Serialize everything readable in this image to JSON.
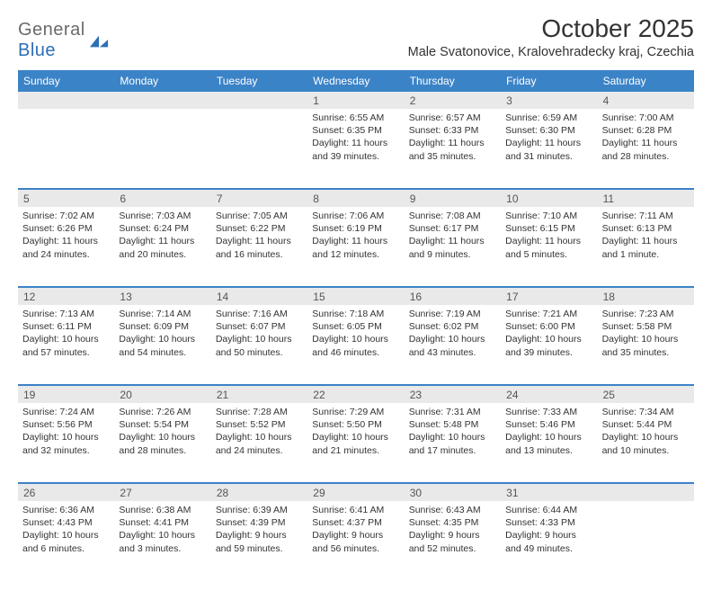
{
  "brand": {
    "text_gray": "General",
    "text_blue": "Blue",
    "shape_color": "#2d6fb5"
  },
  "title": "October 2025",
  "location": "Male Svatonovice, Kralovehradecky kraj, Czechia",
  "header_bg": "#3b83c7",
  "header_fg": "#ffffff",
  "daynum_bg": "#e9e9e9",
  "rule_color": "#3b83c7",
  "text_color": "#333333",
  "day_names": [
    "Sunday",
    "Monday",
    "Tuesday",
    "Wednesday",
    "Thursday",
    "Friday",
    "Saturday"
  ],
  "weeks": [
    {
      "nums": [
        "",
        "",
        "",
        "1",
        "2",
        "3",
        "4"
      ],
      "cells": [
        null,
        null,
        null,
        {
          "sunrise": "6:55 AM",
          "sunset": "6:35 PM",
          "daylight": "11 hours and 39 minutes."
        },
        {
          "sunrise": "6:57 AM",
          "sunset": "6:33 PM",
          "daylight": "11 hours and 35 minutes."
        },
        {
          "sunrise": "6:59 AM",
          "sunset": "6:30 PM",
          "daylight": "11 hours and 31 minutes."
        },
        {
          "sunrise": "7:00 AM",
          "sunset": "6:28 PM",
          "daylight": "11 hours and 28 minutes."
        }
      ]
    },
    {
      "nums": [
        "5",
        "6",
        "7",
        "8",
        "9",
        "10",
        "11"
      ],
      "cells": [
        {
          "sunrise": "7:02 AM",
          "sunset": "6:26 PM",
          "daylight": "11 hours and 24 minutes."
        },
        {
          "sunrise": "7:03 AM",
          "sunset": "6:24 PM",
          "daylight": "11 hours and 20 minutes."
        },
        {
          "sunrise": "7:05 AM",
          "sunset": "6:22 PM",
          "daylight": "11 hours and 16 minutes."
        },
        {
          "sunrise": "7:06 AM",
          "sunset": "6:19 PM",
          "daylight": "11 hours and 12 minutes."
        },
        {
          "sunrise": "7:08 AM",
          "sunset": "6:17 PM",
          "daylight": "11 hours and 9 minutes."
        },
        {
          "sunrise": "7:10 AM",
          "sunset": "6:15 PM",
          "daylight": "11 hours and 5 minutes."
        },
        {
          "sunrise": "7:11 AM",
          "sunset": "6:13 PM",
          "daylight": "11 hours and 1 minute."
        }
      ]
    },
    {
      "nums": [
        "12",
        "13",
        "14",
        "15",
        "16",
        "17",
        "18"
      ],
      "cells": [
        {
          "sunrise": "7:13 AM",
          "sunset": "6:11 PM",
          "daylight": "10 hours and 57 minutes."
        },
        {
          "sunrise": "7:14 AM",
          "sunset": "6:09 PM",
          "daylight": "10 hours and 54 minutes."
        },
        {
          "sunrise": "7:16 AM",
          "sunset": "6:07 PM",
          "daylight": "10 hours and 50 minutes."
        },
        {
          "sunrise": "7:18 AM",
          "sunset": "6:05 PM",
          "daylight": "10 hours and 46 minutes."
        },
        {
          "sunrise": "7:19 AM",
          "sunset": "6:02 PM",
          "daylight": "10 hours and 43 minutes."
        },
        {
          "sunrise": "7:21 AM",
          "sunset": "6:00 PM",
          "daylight": "10 hours and 39 minutes."
        },
        {
          "sunrise": "7:23 AM",
          "sunset": "5:58 PM",
          "daylight": "10 hours and 35 minutes."
        }
      ]
    },
    {
      "nums": [
        "19",
        "20",
        "21",
        "22",
        "23",
        "24",
        "25"
      ],
      "cells": [
        {
          "sunrise": "7:24 AM",
          "sunset": "5:56 PM",
          "daylight": "10 hours and 32 minutes."
        },
        {
          "sunrise": "7:26 AM",
          "sunset": "5:54 PM",
          "daylight": "10 hours and 28 minutes."
        },
        {
          "sunrise": "7:28 AM",
          "sunset": "5:52 PM",
          "daylight": "10 hours and 24 minutes."
        },
        {
          "sunrise": "7:29 AM",
          "sunset": "5:50 PM",
          "daylight": "10 hours and 21 minutes."
        },
        {
          "sunrise": "7:31 AM",
          "sunset": "5:48 PM",
          "daylight": "10 hours and 17 minutes."
        },
        {
          "sunrise": "7:33 AM",
          "sunset": "5:46 PM",
          "daylight": "10 hours and 13 minutes."
        },
        {
          "sunrise": "7:34 AM",
          "sunset": "5:44 PM",
          "daylight": "10 hours and 10 minutes."
        }
      ]
    },
    {
      "nums": [
        "26",
        "27",
        "28",
        "29",
        "30",
        "31",
        ""
      ],
      "cells": [
        {
          "sunrise": "6:36 AM",
          "sunset": "4:43 PM",
          "daylight": "10 hours and 6 minutes."
        },
        {
          "sunrise": "6:38 AM",
          "sunset": "4:41 PM",
          "daylight": "10 hours and 3 minutes."
        },
        {
          "sunrise": "6:39 AM",
          "sunset": "4:39 PM",
          "daylight": "9 hours and 59 minutes."
        },
        {
          "sunrise": "6:41 AM",
          "sunset": "4:37 PM",
          "daylight": "9 hours and 56 minutes."
        },
        {
          "sunrise": "6:43 AM",
          "sunset": "4:35 PM",
          "daylight": "9 hours and 52 minutes."
        },
        {
          "sunrise": "6:44 AM",
          "sunset": "4:33 PM",
          "daylight": "9 hours and 49 minutes."
        },
        null
      ]
    }
  ],
  "labels": {
    "sunrise": "Sunrise:",
    "sunset": "Sunset:",
    "daylight": "Daylight:"
  }
}
